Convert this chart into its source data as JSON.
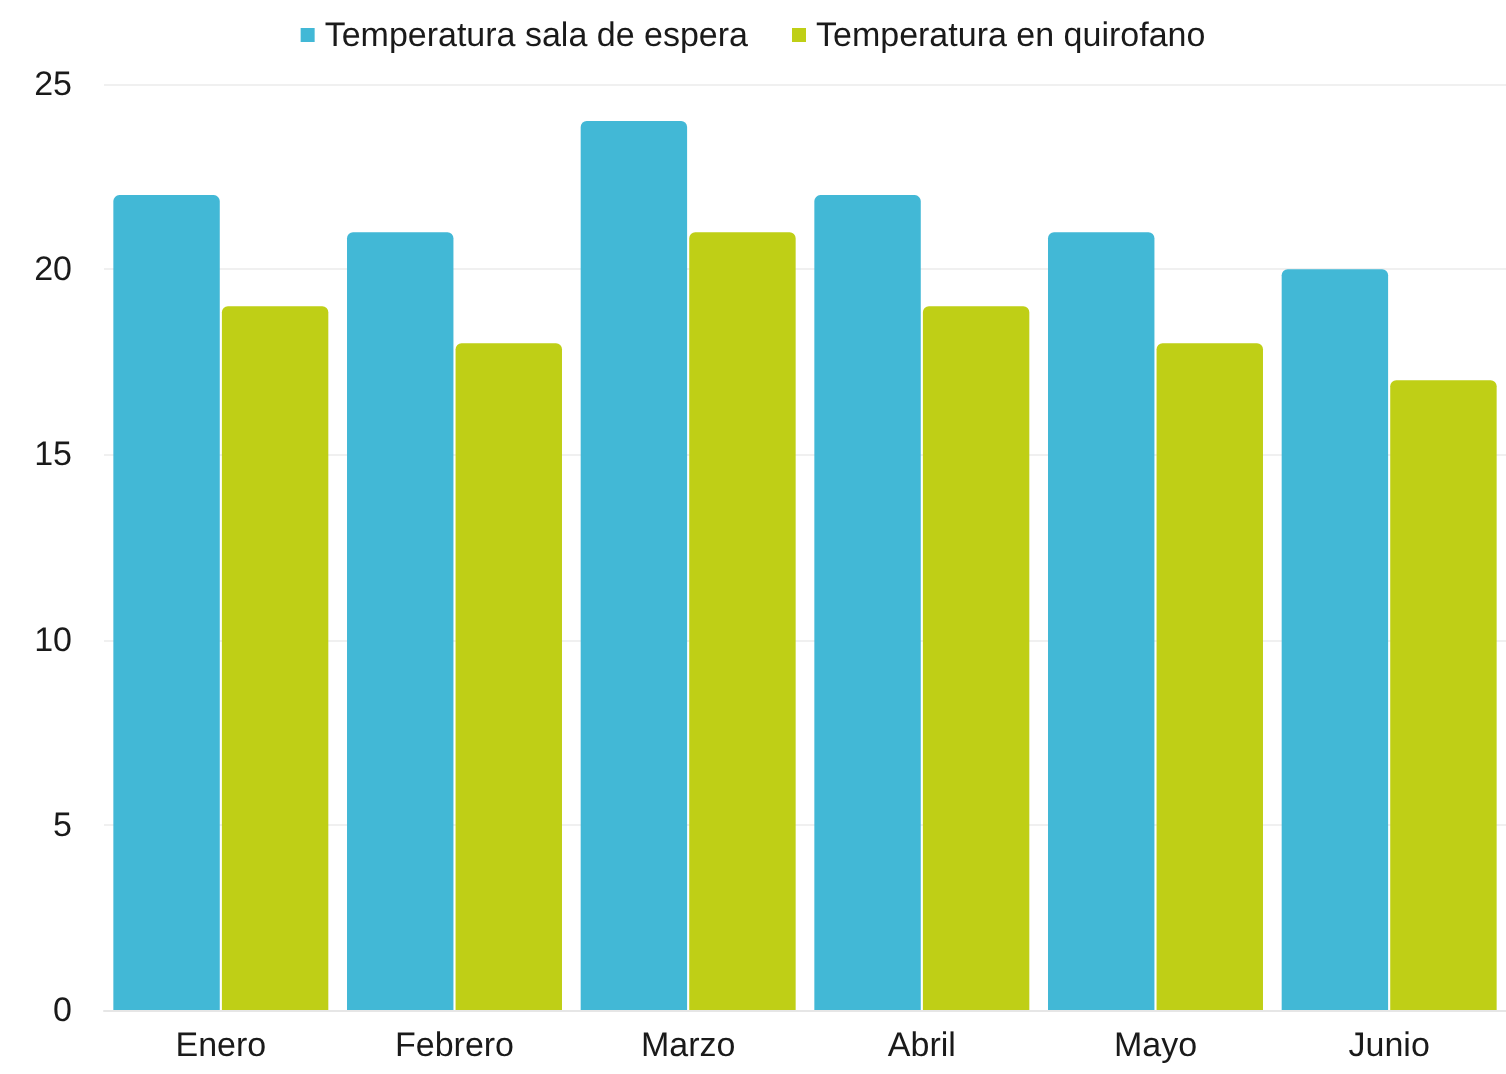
{
  "chart_data": {
    "type": "bar",
    "categories": [
      "Enero",
      "Febrero",
      "Marzo",
      "Abril",
      "Mayo",
      "Junio"
    ],
    "series": [
      {
        "name": "Temperatura sala de espera",
        "color": "#42b8d6",
        "values": [
          22,
          21,
          24,
          22,
          21,
          20
        ]
      },
      {
        "name": "Temperatura en quirofano",
        "color": "#bfcf16",
        "values": [
          19,
          18,
          21,
          19,
          18,
          17
        ]
      }
    ],
    "ylim": [
      0,
      25
    ],
    "yticks": [
      0,
      5,
      10,
      15,
      20,
      25
    ],
    "grid": "y",
    "legend": "top"
  }
}
